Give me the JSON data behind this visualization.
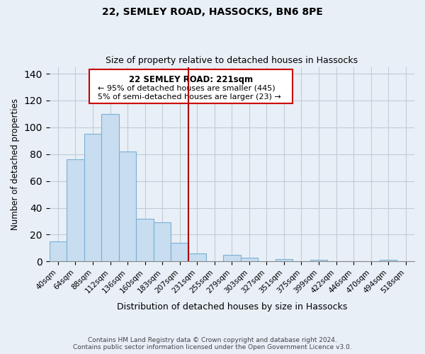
{
  "title": "22, SEMLEY ROAD, HASSOCKS, BN6 8PE",
  "subtitle": "Size of property relative to detached houses in Hassocks",
  "xlabel": "Distribution of detached houses by size in Hassocks",
  "ylabel": "Number of detached properties",
  "bar_labels": [
    "40sqm",
    "64sqm",
    "88sqm",
    "112sqm",
    "136sqm",
    "160sqm",
    "183sqm",
    "207sqm",
    "231sqm",
    "255sqm",
    "279sqm",
    "303sqm",
    "327sqm",
    "351sqm",
    "375sqm",
    "399sqm",
    "422sqm",
    "446sqm",
    "470sqm",
    "494sqm",
    "518sqm"
  ],
  "bar_values": [
    15,
    76,
    95,
    110,
    82,
    32,
    29,
    14,
    6,
    0,
    5,
    3,
    0,
    2,
    0,
    1,
    0,
    0,
    0,
    1,
    0
  ],
  "bar_color": "#c8ddf0",
  "bar_edge_color": "#7ab0d4",
  "vline_x": 8.0,
  "vline_color": "#aa0000",
  "box_text_line1": "22 SEMLEY ROAD: 221sqm",
  "box_text_line2": "← 95% of detached houses are smaller (445)",
  "box_text_line3": "5% of semi-detached houses are larger (23) →",
  "box_color": "#ffffff",
  "box_edge_color": "#cc0000",
  "ylim": [
    0,
    145
  ],
  "yticks": [
    0,
    20,
    40,
    60,
    80,
    100,
    120,
    140
  ],
  "footnote1": "Contains HM Land Registry data © Crown copyright and database right 2024.",
  "footnote2": "Contains public sector information licensed under the Open Government Licence v3.0.",
  "bg_color": "#e8eff7"
}
